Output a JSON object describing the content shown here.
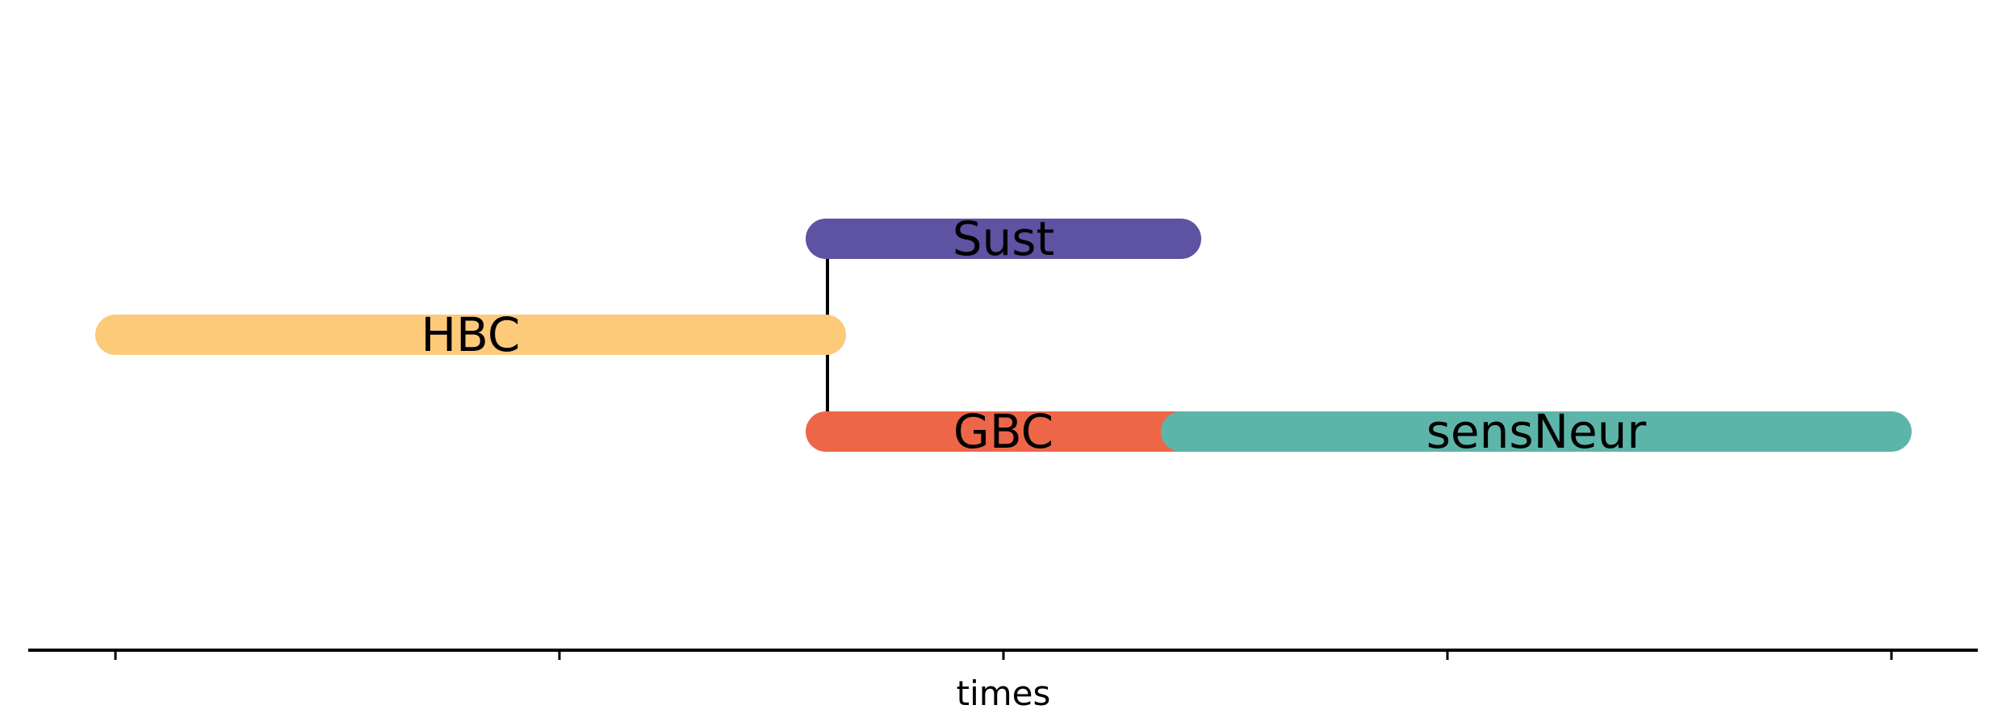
{
  "chart_data": {
    "type": "timeline",
    "xlabel": "times",
    "x_ticks": 5,
    "segments": [
      {
        "name": "HBC",
        "start": 0.0,
        "end": 0.8,
        "row": 0,
        "color": "#fdca7a"
      },
      {
        "name": "Sust",
        "start": 0.8,
        "end": 1.2,
        "row": 1,
        "color": "#5e52a3"
      },
      {
        "name": "GBC",
        "start": 0.8,
        "end": 1.2,
        "row": -1,
        "color": "#ed6648"
      },
      {
        "name": "sensNeur",
        "start": 1.2,
        "end": 2.0,
        "row": -1,
        "color": "#5db5a9"
      }
    ],
    "branches": [
      {
        "x": 0.8,
        "from_row": 1,
        "to_row": -1
      }
    ]
  }
}
